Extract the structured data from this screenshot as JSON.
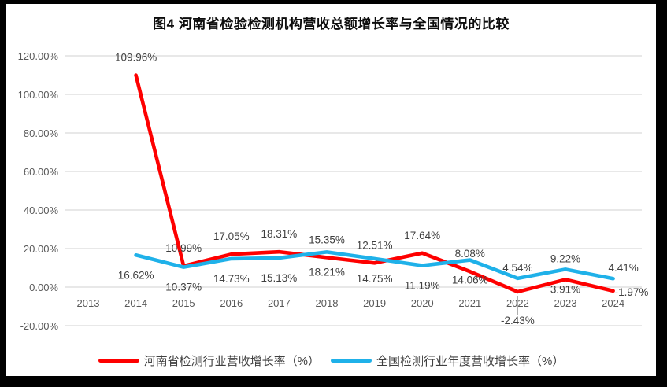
{
  "window": {
    "background": "#000000",
    "card_background": "#FFFFFF"
  },
  "title": "图4  河南省检验检测机构营收总额增长率与全国情况的比较",
  "chart_data": {
    "type": "line",
    "title": "图4  河南省检验检测机构营收总额增长率与全国情况的比较",
    "categories": [
      "2013",
      "2014",
      "2015",
      "2016",
      "2017",
      "2018",
      "2019",
      "2020",
      "2021",
      "2022",
      "2023",
      "2024"
    ],
    "series": [
      {
        "name": "河南省检测行业营收增长率（%）",
        "color": "#FE0000",
        "values": [
          null,
          109.96,
          10.99,
          17.05,
          18.31,
          15.35,
          12.51,
          17.64,
          8.08,
          -2.43,
          3.91,
          -1.97
        ],
        "label_pos": [
          null,
          "above",
          "above",
          "above",
          "above",
          "above",
          "above",
          "above",
          "above",
          "leader-below",
          "below-close",
          "right"
        ]
      },
      {
        "name": "全国检测行业年度营收增长率（%）",
        "color": "#1FB1E9",
        "values": [
          null,
          16.62,
          10.37,
          14.73,
          15.13,
          18.21,
          14.75,
          11.19,
          14.06,
          4.54,
          9.22,
          4.41
        ],
        "label_pos": [
          null,
          "below",
          "below",
          "below",
          "below",
          "below",
          "below",
          "below",
          "below",
          "above-close",
          "above-close",
          "above-close-right"
        ]
      }
    ],
    "yticks": [
      "120.00%",
      "100.00%",
      "80.00%",
      "60.00%",
      "40.00%",
      "20.00%",
      "0.00%",
      "-20.00%"
    ],
    "ylim": [
      -20,
      120
    ],
    "ytick_step": 20,
    "grid": true,
    "gridline_color": "#D9D9D9",
    "axis_text_color": "#595959",
    "datalabel_color": "#3F3F3F",
    "leader_line_color": "#A6A6A6",
    "legend_position": "bottom",
    "label_format": "percent-2dp"
  }
}
